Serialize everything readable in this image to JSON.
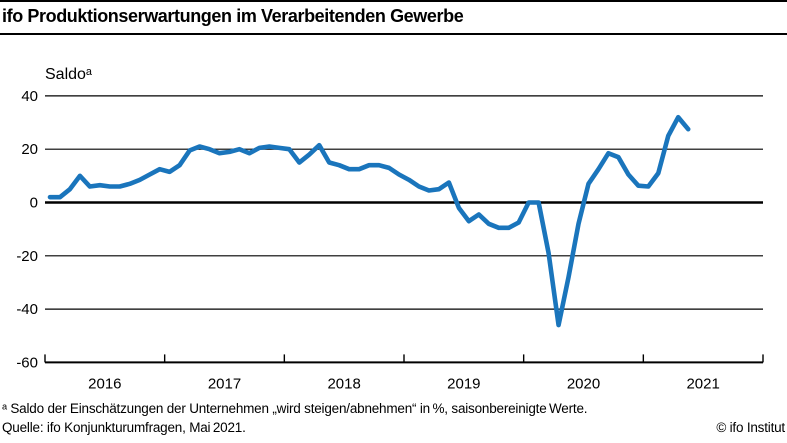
{
  "header": {
    "title": "ifo Produktionserwartungen im Verarbeitenden Gewerbe"
  },
  "footer": {
    "footnote": "ᵃ Saldo der Einschätzungen der Unternehmen „wird steigen/abnehmen“ in %, saisonbereinigte Werte.",
    "source": "Quelle: ifo Konjunkturumfragen, Mai 2021.",
    "copyright": "© ifo Institut"
  },
  "chart_data": {
    "type": "line",
    "title": "ifo Produktionserwartungen im Verarbeitenden Gewerbe",
    "axis_label": "Saldoᵃ",
    "xlabel": "",
    "ylabel": "Saldo",
    "ylim": [
      -60,
      40
    ],
    "grid": "horizontal",
    "legend": "none",
    "y_ticks": [
      40,
      20,
      0,
      -20,
      -40,
      -60
    ],
    "x_tick_years": [
      "2016",
      "2017",
      "2018",
      "2019",
      "2020",
      "2021"
    ],
    "x_start": "2016-01",
    "x_end": "2021-05",
    "frequency": "monthly",
    "line_color": "#1a75bc",
    "series": [
      {
        "name": "Produktionserwartungen (Saldo, saisonbereinigt)",
        "values": [
          2,
          2,
          5,
          10,
          6,
          6.5,
          6,
          6,
          7,
          8.5,
          10.5,
          12.5,
          11.5,
          14,
          19.5,
          21,
          20,
          18.5,
          19,
          20,
          18.5,
          20.5,
          21,
          20.5,
          20,
          15,
          18,
          21.5,
          15,
          14,
          12.5,
          12.5,
          14,
          14,
          13,
          10.5,
          8.5,
          6,
          4.5,
          5,
          7.5,
          -2,
          -7,
          -4.5,
          -8,
          -9.5,
          -9.5,
          -7.5,
          0,
          0,
          -19,
          -46,
          -28,
          -8,
          7,
          12.5,
          18.5,
          17,
          10.5,
          6.3,
          6,
          11,
          25,
          32,
          27.5
        ]
      }
    ]
  },
  "colors": {
    "line": "#1a75bc",
    "axis": "#000000",
    "background": "#ffffff"
  }
}
